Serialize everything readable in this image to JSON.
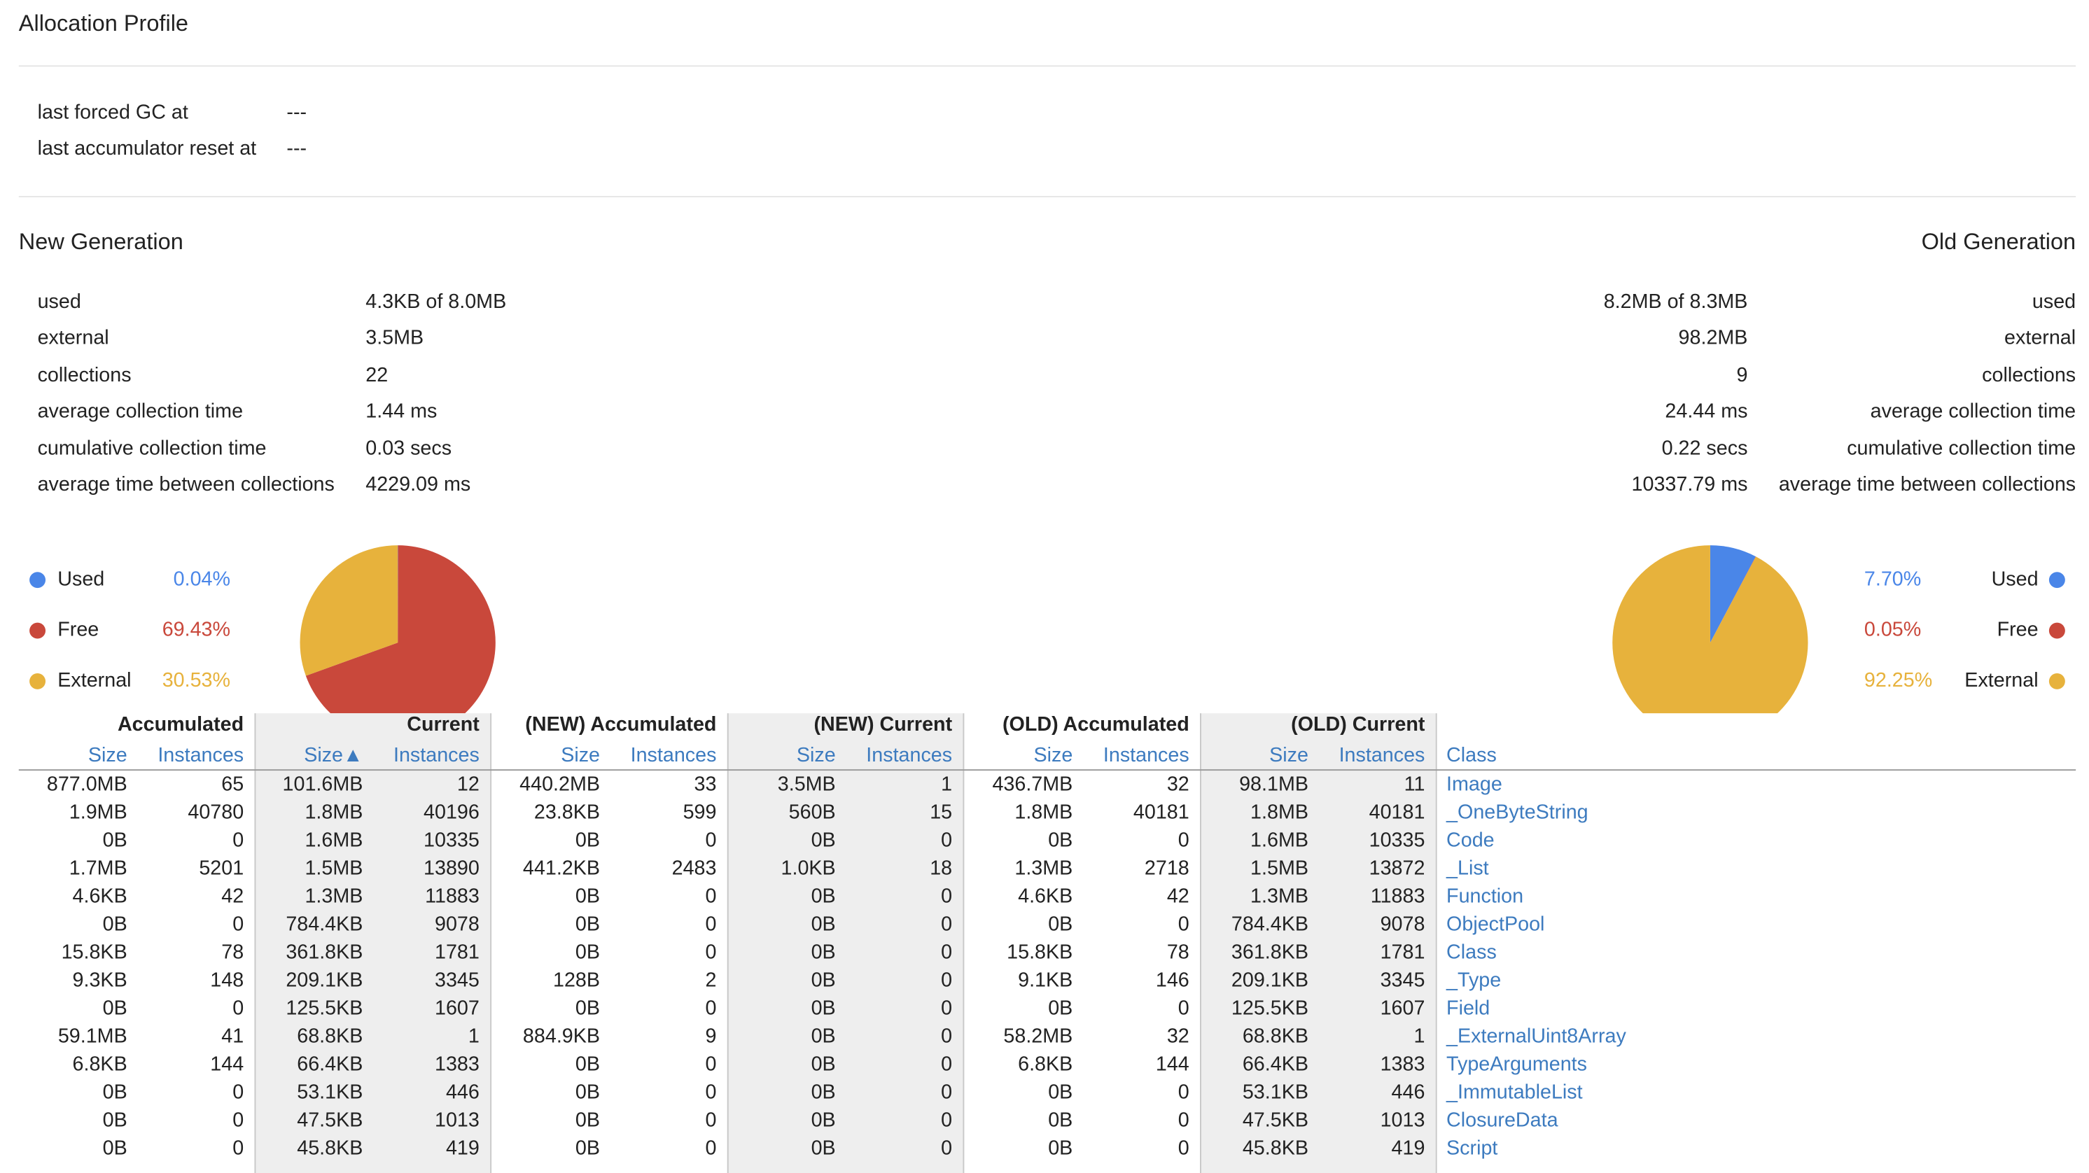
{
  "page_title": "Allocation Profile",
  "gc_info": [
    {
      "label": "last forced GC at",
      "value": "---"
    },
    {
      "label": "last accumulator reset at",
      "value": "---"
    }
  ],
  "new_gen": {
    "title": "New Generation",
    "stats": [
      {
        "label": "used",
        "value": "4.3KB of 8.0MB"
      },
      {
        "label": "external",
        "value": "3.5MB"
      },
      {
        "label": "collections",
        "value": "22"
      },
      {
        "label": "average collection time",
        "value": "1.44 ms"
      },
      {
        "label": "cumulative collection time",
        "value": "0.03 secs"
      },
      {
        "label": "average time between collections",
        "value": "4229.09 ms"
      }
    ],
    "legend": [
      {
        "label": "Used",
        "value": "0.04%",
        "fraction": 0.0004,
        "color": "#4a86e8"
      },
      {
        "label": "Free",
        "value": "69.43%",
        "fraction": 0.6943,
        "color": "#c9483b"
      },
      {
        "label": "External",
        "value": "30.53%",
        "fraction": 0.3053,
        "color": "#e7b23c"
      }
    ]
  },
  "old_gen": {
    "title": "Old Generation",
    "stats": [
      {
        "label": "used",
        "value": "8.2MB of 8.3MB"
      },
      {
        "label": "external",
        "value": "98.2MB"
      },
      {
        "label": "collections",
        "value": "9"
      },
      {
        "label": "average collection time",
        "value": "24.44 ms"
      },
      {
        "label": "cumulative collection time",
        "value": "0.22 secs"
      },
      {
        "label": "average time between collections",
        "value": "10337.79 ms"
      }
    ],
    "legend": [
      {
        "label": "Used",
        "value": "7.70%",
        "fraction": 0.077,
        "color": "#4a86e8"
      },
      {
        "label": "Free",
        "value": "0.05%",
        "fraction": 0.0005,
        "color": "#c9483b"
      },
      {
        "label": "External",
        "value": "92.25%",
        "fraction": 0.9225,
        "color": "#e7b23c"
      }
    ]
  },
  "table": {
    "groups": [
      "Accumulated",
      "Current",
      "(NEW) Accumulated",
      "(NEW) Current",
      "(OLD) Accumulated",
      "(OLD) Current"
    ],
    "size_label": "Size",
    "instances_label": "Instances",
    "sorted_size_label": "Size▲",
    "class_label": "Class",
    "rows": [
      [
        "877.0MB",
        "65",
        "101.6MB",
        "12",
        "440.2MB",
        "33",
        "3.5MB",
        "1",
        "436.7MB",
        "32",
        "98.1MB",
        "11",
        "Image"
      ],
      [
        "1.9MB",
        "40780",
        "1.8MB",
        "40196",
        "23.8KB",
        "599",
        "560B",
        "15",
        "1.8MB",
        "40181",
        "1.8MB",
        "40181",
        "_OneByteString"
      ],
      [
        "0B",
        "0",
        "1.6MB",
        "10335",
        "0B",
        "0",
        "0B",
        "0",
        "0B",
        "0",
        "1.6MB",
        "10335",
        "Code"
      ],
      [
        "1.7MB",
        "5201",
        "1.5MB",
        "13890",
        "441.2KB",
        "2483",
        "1.0KB",
        "18",
        "1.3MB",
        "2718",
        "1.5MB",
        "13872",
        "_List"
      ],
      [
        "4.6KB",
        "42",
        "1.3MB",
        "11883",
        "0B",
        "0",
        "0B",
        "0",
        "4.6KB",
        "42",
        "1.3MB",
        "11883",
        "Function"
      ],
      [
        "0B",
        "0",
        "784.4KB",
        "9078",
        "0B",
        "0",
        "0B",
        "0",
        "0B",
        "0",
        "784.4KB",
        "9078",
        "ObjectPool"
      ],
      [
        "15.8KB",
        "78",
        "361.8KB",
        "1781",
        "0B",
        "0",
        "0B",
        "0",
        "15.8KB",
        "78",
        "361.8KB",
        "1781",
        "Class"
      ],
      [
        "9.3KB",
        "148",
        "209.1KB",
        "3345",
        "128B",
        "2",
        "0B",
        "0",
        "9.1KB",
        "146",
        "209.1KB",
        "3345",
        "_Type"
      ],
      [
        "0B",
        "0",
        "125.5KB",
        "1607",
        "0B",
        "0",
        "0B",
        "0",
        "0B",
        "0",
        "125.5KB",
        "1607",
        "Field"
      ],
      [
        "59.1MB",
        "41",
        "68.8KB",
        "1",
        "884.9KB",
        "9",
        "0B",
        "0",
        "58.2MB",
        "32",
        "68.8KB",
        "1",
        "_ExternalUint8Array"
      ],
      [
        "6.8KB",
        "144",
        "66.4KB",
        "1383",
        "0B",
        "0",
        "0B",
        "0",
        "6.8KB",
        "144",
        "66.4KB",
        "1383",
        "TypeArguments"
      ],
      [
        "0B",
        "0",
        "53.1KB",
        "446",
        "0B",
        "0",
        "0B",
        "0",
        "0B",
        "0",
        "53.1KB",
        "446",
        "_ImmutableList"
      ],
      [
        "0B",
        "0",
        "47.5KB",
        "1013",
        "0B",
        "0",
        "0B",
        "0",
        "0B",
        "0",
        "47.5KB",
        "1013",
        "ClosureData"
      ],
      [
        "0B",
        "0",
        "45.8KB",
        "419",
        "0B",
        "0",
        "0B",
        "0",
        "0B",
        "0",
        "45.8KB",
        "419",
        "Script"
      ]
    ]
  }
}
